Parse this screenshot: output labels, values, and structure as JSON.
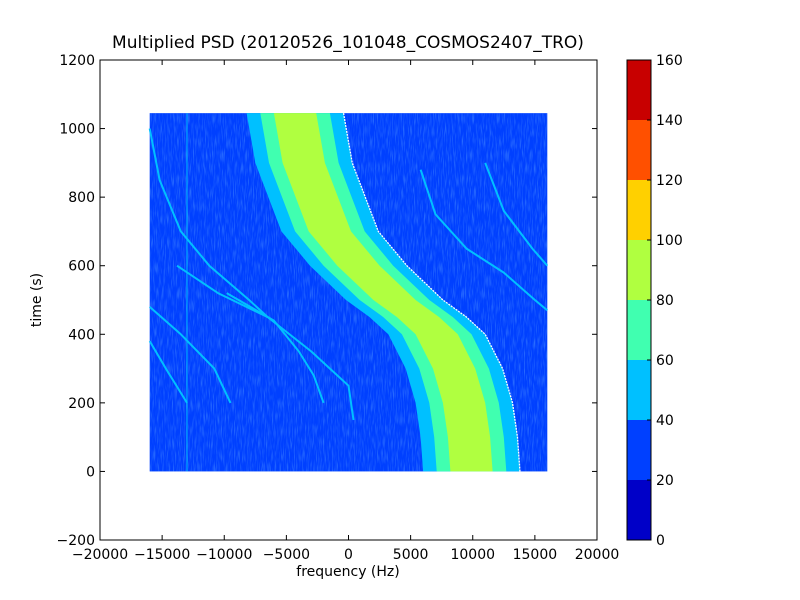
{
  "chart_data": {
    "type": "heatmap",
    "title": "Multiplied PSD (20120526_101048_COSMOS2407_TRO)",
    "xlabel": "frequency (Hz)",
    "ylabel": "time (s)",
    "xlim": [
      -20000,
      20000
    ],
    "ylim": [
      -200,
      1200
    ],
    "x_ticks": [
      -20000,
      -15000,
      -10000,
      -5000,
      0,
      5000,
      10000,
      15000,
      20000
    ],
    "y_ticks": [
      -200,
      0,
      200,
      400,
      600,
      800,
      1000,
      1200
    ],
    "data_extent": {
      "x": [
        -16000,
        16000
      ],
      "y": [
        0,
        1045
      ]
    },
    "grid": false,
    "colorbar": {
      "levels": [
        0,
        20,
        40,
        60,
        80,
        100,
        120,
        140,
        160
      ],
      "colors": [
        "#0000c8",
        "#0040ff",
        "#00c0ff",
        "#40ffb0",
        "#b0ff40",
        "#ffd000",
        "#ff5000",
        "#c80000"
      ]
    },
    "background_level": [
      20,
      40
    ],
    "main_trace": {
      "description_level": "Doppler curve; bands of increasing PSD",
      "center_freq_at_time": [
        [
          1045,
          -4300
        ],
        [
          900,
          -3600
        ],
        [
          700,
          -1500
        ],
        [
          600,
          800
        ],
        [
          500,
          3700
        ],
        [
          450,
          5600
        ],
        [
          400,
          7100
        ],
        [
          300,
          8500
        ],
        [
          200,
          9300
        ],
        [
          100,
          9700
        ],
        [
          0,
          9900
        ]
      ],
      "band_half_widths": [
        {
          "level": "40-60",
          "half_width": 3900
        },
        {
          "level": "60-80",
          "half_width": 2800
        },
        {
          "level": "80-100",
          "half_width": 1700
        }
      ]
    },
    "secondary_traces": [
      {
        "points": [
          [
            1000,
            -16000
          ],
          [
            850,
            -15200
          ],
          [
            700,
            -13500
          ],
          [
            600,
            -11200
          ],
          [
            500,
            -8000
          ],
          [
            450,
            -6500
          ]
        ]
      },
      {
        "points": [
          [
            600,
            -13800
          ],
          [
            520,
            -10500
          ],
          [
            450,
            -6500
          ],
          [
            350,
            -3000
          ],
          [
            250,
            0
          ],
          [
            150,
            400
          ]
        ]
      },
      {
        "points": [
          [
            480,
            -16000
          ],
          [
            400,
            -13500
          ],
          [
            300,
            -10800
          ],
          [
            200,
            -9500
          ]
        ]
      },
      {
        "points": [
          [
            520,
            -9800
          ],
          [
            440,
            -6000
          ],
          [
            350,
            -4000
          ],
          [
            280,
            -2800
          ],
          [
            200,
            -2000
          ]
        ]
      },
      {
        "points": [
          [
            880,
            5800
          ],
          [
            750,
            7000
          ],
          [
            650,
            9500
          ],
          [
            580,
            12500
          ],
          [
            500,
            15000
          ],
          [
            470,
            16000
          ]
        ]
      },
      {
        "points": [
          [
            900,
            11000
          ],
          [
            760,
            12500
          ],
          [
            650,
            14800
          ],
          [
            600,
            16000
          ]
        ]
      },
      {
        "points": [
          [
            380,
            -16000
          ],
          [
            300,
            -14700
          ],
          [
            200,
            -13000
          ]
        ]
      }
    ]
  }
}
